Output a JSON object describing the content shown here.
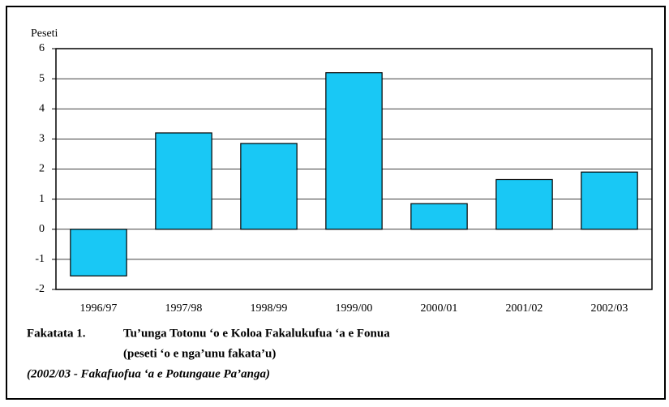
{
  "chart_data": {
    "type": "bar",
    "y_label": "Peseti",
    "categories": [
      "1996/97",
      "1997/98",
      "1998/99",
      "1999/00",
      "2000/01",
      "2001/02",
      "2002/03"
    ],
    "values": [
      -1.55,
      3.2,
      2.85,
      5.2,
      0.85,
      1.65,
      1.9
    ],
    "color": "#19c8f5",
    "ylim": [
      -2,
      6
    ],
    "yticks": [
      -2,
      -1,
      0,
      1,
      2,
      3,
      4,
      5,
      6
    ],
    "grid": true,
    "figure_label": "Fakatata 1.",
    "title": "Tu’unga Totonu ‘o e Koloa Fakalukufua ‘a e Fonua",
    "subtitle": "(peseti ‘o e nga’unu fakata’u)",
    "note": "(2002/03 - Fakafuofua ‘a e Potungaue Pa’anga)"
  }
}
